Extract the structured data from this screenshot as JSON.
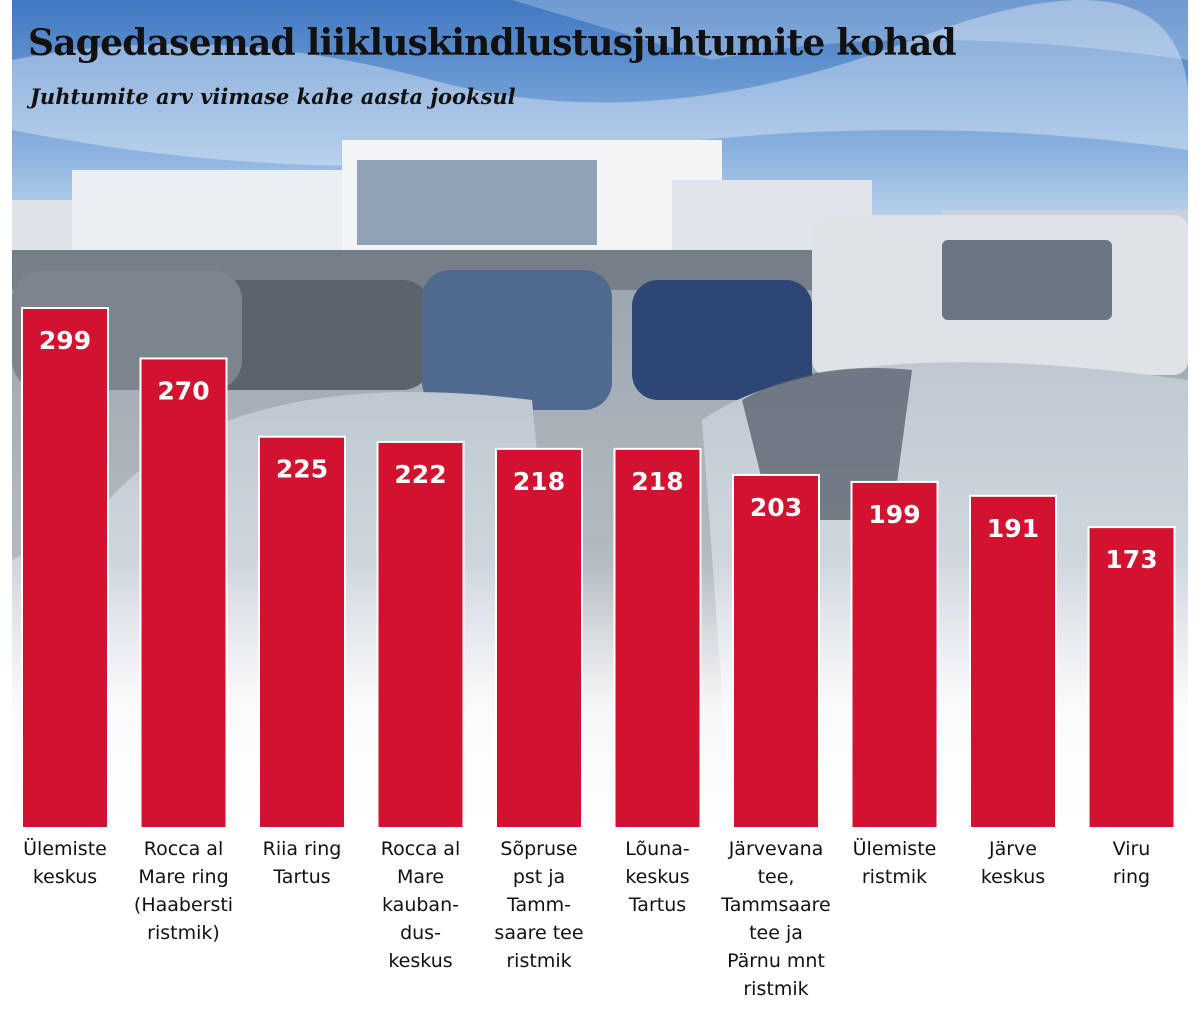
{
  "title": "Sagedasemad liikluskindlustusjuhtumite kohad",
  "subtitle": "Juhtumite arv viimase kahe aasta jooksul",
  "colors": {
    "bar": "#d2122e",
    "bar_border": "#ffffff",
    "text": "#111111"
  },
  "chart_data": {
    "type": "bar",
    "title": "Sagedasemad liikluskindlustusjuhtumite kohad",
    "subtitle": "Juhtumite arv viimase kahe aasta jooksul",
    "categories": [
      [
        "Ülemiste",
        "keskus"
      ],
      [
        "Rocca al",
        "Mare ring",
        "(Haabersti",
        "ristmik)"
      ],
      [
        "Riia ring",
        "Tartus"
      ],
      [
        "Rocca al",
        "Mare",
        "kauban-",
        "dus-",
        "keskus"
      ],
      [
        "Sõpruse",
        "pst ja",
        "Tamm-",
        "saare tee",
        "ristmik"
      ],
      [
        "Lõuna-",
        "keskus",
        "Tartus"
      ],
      [
        "Järvevana",
        "tee,",
        "Tammsaare",
        "tee ja",
        "Pärnu mnt",
        "ristmik"
      ],
      [
        "Ülemiste",
        "ristmik"
      ],
      [
        "Järve",
        "keskus"
      ],
      [
        "Viru",
        "ring"
      ]
    ],
    "values": [
      299,
      270,
      225,
      222,
      218,
      218,
      203,
      199,
      191,
      173
    ],
    "xlabel": "",
    "ylabel": "",
    "ylim": [
      0,
      299
    ],
    "grid": false,
    "legend": "none",
    "data_labels": "inside-top"
  }
}
